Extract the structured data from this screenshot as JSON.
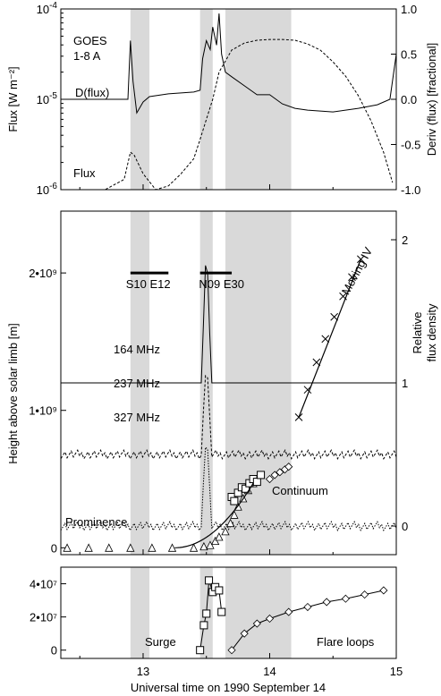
{
  "x_axis": {
    "label": "Universal time on 1990 September 14",
    "range": [
      12.35,
      15.0
    ],
    "ticks": [
      "13",
      "14",
      "15"
    ],
    "tick_values": [
      13,
      14,
      15
    ]
  },
  "shaded_intervals": [
    [
      12.9,
      13.05
    ],
    [
      13.45,
      13.55
    ],
    [
      13.65,
      14.17
    ]
  ],
  "panel_top": {
    "left_axis_label": "Flux [W m⁻²]",
    "right_axis_label": "Deriv (flux) [fractional]",
    "left_ticks": [
      {
        "base": "10",
        "exp": "-4",
        "value": 0.0001
      },
      {
        "base": "10",
        "exp": "-5",
        "value": 1e-05
      },
      {
        "base": "10",
        "exp": "-6",
        "value": 1e-06
      }
    ],
    "right_ticks": [
      "1.0",
      "0.5",
      "0.0",
      "-0.5",
      "-1.0"
    ],
    "right_tick_values": [
      1.0,
      0.5,
      0.0,
      -0.5,
      -1.0
    ],
    "label_goes": "GOES",
    "label_band": "1-8 A",
    "label_deriv": "D(flux)",
    "label_flux": "Flux"
  },
  "panel_middle": {
    "left_axis_label": "Height above solar limb [m]",
    "right_axis_label_1": "Relative",
    "right_axis_label_2": "flux density",
    "left_ticks": [
      "2•10⁹",
      "1•10⁹",
      "0"
    ],
    "left_tick_values": [
      2000000000.0,
      1000000000.0,
      0
    ],
    "right_ticks": [
      "2",
      "1",
      "0"
    ],
    "right_tick_values": [
      2,
      1,
      0
    ],
    "bar_labels": [
      {
        "text": "S10 E12",
        "x_range": [
          12.9,
          13.2
        ],
        "x_text": 13.04
      },
      {
        "text": "N09 E30",
        "x_range": [
          13.45,
          13.7
        ],
        "x_text": 13.62
      }
    ],
    "freq_labels": [
      "164 MHz",
      "237 MHz",
      "327 MHz"
    ],
    "label_moving": "Moving IV",
    "label_continuum": "Continuum",
    "label_prominence": "Prominence"
  },
  "panel_bottom": {
    "left_ticks": [
      "4•10⁷",
      "2•10⁷",
      "0"
    ],
    "left_tick_values": [
      40000000.0,
      20000000.0,
      0
    ],
    "label_surge": "Surge",
    "label_flare_loops": "Flare loops"
  },
  "chart_data": [
    {
      "type": "line",
      "title": "",
      "xlabel": "Universal time on 1990 September 14",
      "ylabel": "Flux [W m⁻²]",
      "y_scale": "log",
      "ylim": [
        1e-06,
        0.0001
      ],
      "series": [
        {
          "name": "Flux",
          "x": [
            12.35,
            12.7,
            12.85,
            12.9,
            12.93,
            13.0,
            13.1,
            13.2,
            13.3,
            13.4,
            13.45,
            13.5,
            13.55,
            13.6,
            13.7,
            13.8,
            13.9,
            14.0,
            14.1,
            14.2,
            14.3,
            14.4,
            14.5,
            14.6,
            14.7,
            14.8,
            14.9,
            14.97
          ],
          "y": [
            1e-06,
            1e-06,
            1.3e-06,
            2.6e-06,
            2.4e-06,
            1.5e-06,
            1e-06,
            1.1e-06,
            1.5e-06,
            2.2e-06,
            3.6e-06,
            6e-06,
            1e-05,
            2e-05,
            3.5e-05,
            4.2e-05,
            4.5e-05,
            4.6e-05,
            4.6e-05,
            4.5e-05,
            4.1e-05,
            3.5e-05,
            2.6e-05,
            1.8e-05,
            1.1e-05,
            5.8e-06,
            2.6e-06,
            1.2e-06
          ]
        }
      ],
      "right_axis": {
        "label": "Deriv (flux) [fractional]",
        "ylim": [
          -1.0,
          1.0
        ],
        "series": [
          {
            "name": "D(flux)",
            "x": [
              12.35,
              12.88,
              12.9,
              12.92,
              12.95,
              13.0,
              13.05,
              13.2,
              13.4,
              13.45,
              13.47,
              13.5,
              13.53,
              13.55,
              13.58,
              13.6,
              13.62,
              13.65,
              13.7,
              13.8,
              13.9,
              14.0,
              14.1,
              14.2,
              14.3,
              14.5,
              14.7,
              14.85,
              14.95,
              15.0
            ],
            "y": [
              0.0,
              0.0,
              0.65,
              0.2,
              -0.15,
              -0.03,
              0.03,
              0.06,
              0.08,
              0.1,
              0.45,
              0.65,
              0.55,
              0.8,
              0.6,
              0.95,
              0.5,
              0.3,
              0.25,
              0.15,
              0.05,
              0.05,
              -0.05,
              -0.1,
              -0.12,
              -0.14,
              -0.1,
              -0.06,
              0.0,
              0.5
            ]
          }
        ]
      }
    },
    {
      "type": "scatter",
      "title": "",
      "xlabel": "",
      "ylabel": "Height above solar limb [m]",
      "ylim": [
        -50000000.0,
        2450000000.0
      ],
      "series": [
        {
          "name": "Prominence",
          "marker": "triangle",
          "x": [
            12.4,
            12.57,
            12.73,
            12.9,
            13.07,
            13.23,
            13.4,
            13.48,
            13.53,
            13.57,
            13.6,
            13.65,
            13.69,
            13.72,
            13.75,
            13.79,
            13.83,
            13.87
          ],
          "y": [
            0.0,
            0.0,
            0.0,
            0.0,
            0.0,
            0.0,
            0.0,
            10000000.0,
            20000000.0,
            50000000.0,
            80000000.0,
            120000000.0,
            180000000.0,
            240000000.0,
            300000000.0,
            360000000.0,
            420000000.0,
            470000000.0
          ]
        },
        {
          "name": "Continuum",
          "marker": "square",
          "x": [
            13.7,
            13.72,
            13.75,
            13.78,
            13.81,
            13.84,
            13.87,
            13.9,
            13.93
          ],
          "y": [
            370000000.0,
            340000000.0,
            400000000.0,
            440000000.0,
            430000000.0,
            470000000.0,
            500000000.0,
            480000000.0,
            530000000.0
          ]
        },
        {
          "name": "Continuum",
          "marker": "diamond",
          "x": [
            14.0,
            14.04,
            14.08,
            14.12,
            14.15
          ],
          "y": [
            500000000.0,
            530000000.0,
            550000000.0,
            570000000.0,
            590000000.0
          ]
        },
        {
          "name": "Moving IV",
          "marker": "cross",
          "x": [
            14.23,
            14.3,
            14.37,
            14.44,
            14.51,
            14.58,
            14.65,
            14.72
          ],
          "y": [
            950000000.0,
            1150000000.0,
            1350000000.0,
            1520000000.0,
            1680000000.0,
            1830000000.0,
            1970000000.0,
            2100000000.0
          ]
        }
      ],
      "right_axis": {
        "label": "Relative flux density",
        "ylim": [
          -0.2,
          2.2
        ],
        "series": [
          {
            "name": "164 MHz",
            "baseline": 1.0,
            "peak_x": 13.5,
            "peak_y": 2.0
          },
          {
            "name": "237 MHz",
            "baseline": 0.5,
            "peak_x": 13.5,
            "peak_y": 1.2
          },
          {
            "name": "327 MHz",
            "baseline": 0.0,
            "peak_x": 13.5,
            "peak_y": 0.7
          }
        ]
      }
    },
    {
      "type": "scatter",
      "title": "",
      "xlabel": "Universal time on 1990 September 14",
      "ylabel": "",
      "ylim": [
        -5000000.0,
        50000000.0
      ],
      "series": [
        {
          "name": "Surge",
          "marker": "square",
          "x": [
            13.45,
            13.48,
            13.5,
            13.52,
            13.55,
            13.57,
            13.6,
            13.62
          ],
          "y": [
            0.0,
            15000000.0,
            22000000.0,
            42000000.0,
            35000000.0,
            38000000.0,
            36000000.0,
            23000000.0
          ]
        },
        {
          "name": "Flare loops",
          "marker": "diamond",
          "x": [
            13.7,
            13.8,
            13.9,
            14.0,
            14.15,
            14.3,
            14.45,
            14.6,
            14.75,
            14.9
          ],
          "y": [
            0.0,
            10000000.0,
            16000000.0,
            19000000.0,
            23000000.0,
            26000000.0,
            29000000.0,
            31000000.0,
            33500000.0,
            36000000.0
          ]
        }
      ]
    }
  ]
}
